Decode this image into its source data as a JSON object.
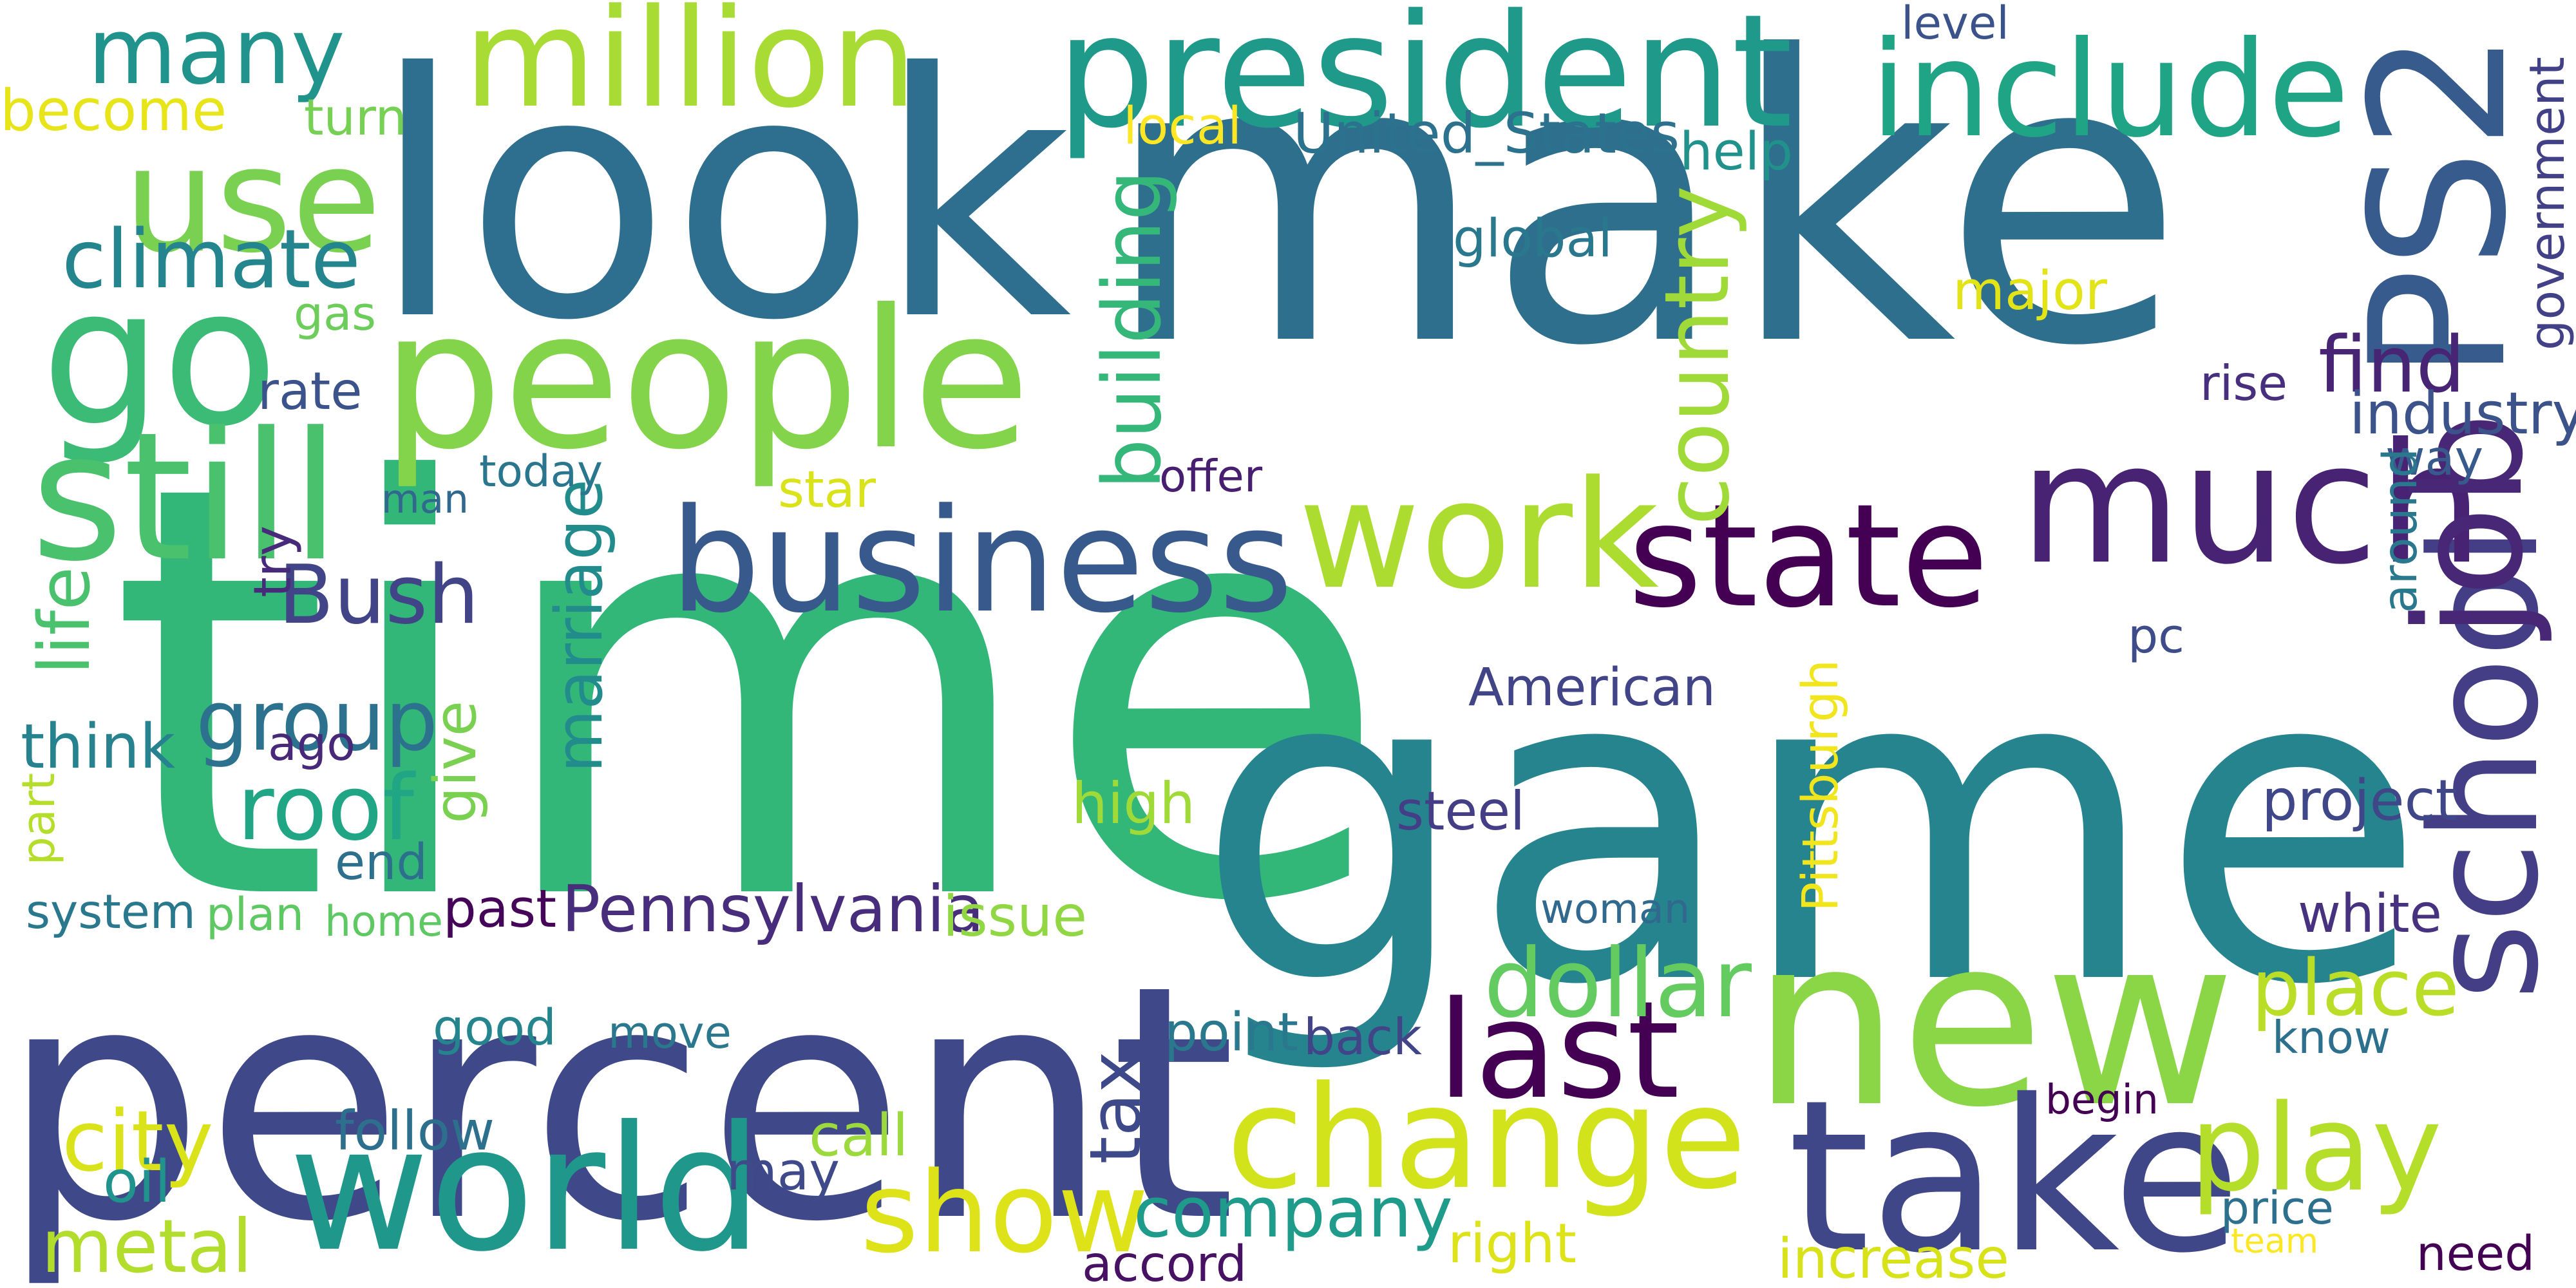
{
  "words": [
    {
      "text": "make",
      "color": "#2e6f8e",
      "vertical": false
    },
    {
      "text": "time",
      "color": "#33b779",
      "vertical": false
    },
    {
      "text": "game",
      "color": "#25848e",
      "vertical": false
    },
    {
      "text": "percent",
      "color": "#3f4889",
      "vertical": false
    },
    {
      "text": "new",
      "color": "#8ad646",
      "vertical": false
    },
    {
      "text": "look",
      "color": "#2e6e8e",
      "vertical": false
    },
    {
      "text": "people",
      "color": "#84d44b",
      "vertical": false
    },
    {
      "text": "take",
      "color": "#404788",
      "vertical": false
    },
    {
      "text": "change",
      "color": "#d2e21b",
      "vertical": false
    },
    {
      "text": "business",
      "color": "#38598c",
      "vertical": false
    },
    {
      "text": "go",
      "color": "#3bbb75",
      "vertical": false
    },
    {
      "text": "president",
      "color": "#1f998a",
      "vertical": false
    },
    {
      "text": "world",
      "color": "#1f988b",
      "vertical": false
    },
    {
      "text": "school",
      "color": "#433e85",
      "vertical": true
    },
    {
      "text": "much",
      "color": "#482374",
      "vertical": false
    },
    {
      "text": "work",
      "color": "#addc30",
      "vertical": false
    },
    {
      "text": "state",
      "color": "#440154",
      "vertical": false
    },
    {
      "text": "include",
      "color": "#20a486",
      "vertical": false
    },
    {
      "text": "use",
      "color": "#7ad151",
      "vertical": false
    },
    {
      "text": "million",
      "color": "#a8db34",
      "vertical": false
    },
    {
      "text": "PS2",
      "color": "#375b8d",
      "vertical": true
    },
    {
      "text": "still",
      "color": "#4ac16d",
      "vertical": false
    },
    {
      "text": "many",
      "color": "#20938c",
      "vertical": false
    },
    {
      "text": "show",
      "color": "#dde318",
      "vertical": false
    },
    {
      "text": "play",
      "color": "#b5de2b",
      "vertical": false
    },
    {
      "text": "last",
      "color": "#440154",
      "vertical": false
    },
    {
      "text": "job",
      "color": "#482777",
      "vertical": true
    },
    {
      "text": "company",
      "color": "#1e9b8a",
      "vertical": false
    },
    {
      "text": "country",
      "color": "#a0da39",
      "vertical": true
    },
    {
      "text": "dollar",
      "color": "#63cb5f",
      "vertical": false
    },
    {
      "text": "Bush",
      "color": "#414487",
      "vertical": false
    },
    {
      "text": "marriage",
      "color": "#228c8d",
      "vertical": true
    },
    {
      "text": "building",
      "color": "#35b779",
      "vertical": true
    },
    {
      "text": "find",
      "color": "#482475",
      "vertical": false
    },
    {
      "text": "place",
      "color": "#bade28",
      "vertical": false
    },
    {
      "text": "group",
      "color": "#2c728e",
      "vertical": false
    },
    {
      "text": "roof",
      "color": "#21a685",
      "vertical": false
    },
    {
      "text": "climate",
      "color": "#25858e",
      "vertical": false
    },
    {
      "text": "metal",
      "color": "#b2dd2d",
      "vertical": false
    },
    {
      "text": "city",
      "color": "#dae319",
      "vertical": false
    },
    {
      "text": "Pennsylvania",
      "color": "#472d7b",
      "vertical": false
    },
    {
      "text": "way",
      "color": "#38598c",
      "vertical": false
    },
    {
      "text": "become",
      "color": "#e7e419",
      "vertical": false
    },
    {
      "text": "may",
      "color": "#3e4a89",
      "vertical": false
    },
    {
      "text": "tax",
      "color": "#3e4989",
      "vertical": true
    },
    {
      "text": "American",
      "color": "#414487",
      "vertical": false
    },
    {
      "text": "life",
      "color": "#4ac16d",
      "vertical": true
    },
    {
      "text": "part",
      "color": "#b5de2b",
      "vertical": true
    },
    {
      "text": "industry",
      "color": "#3b528b",
      "vertical": false
    },
    {
      "text": "government",
      "color": "#424086",
      "vertical": true
    },
    {
      "text": "United_States",
      "color": "#2c728e",
      "vertical": false
    },
    {
      "text": "system",
      "color": "#2a788e",
      "vertical": false
    },
    {
      "text": "home",
      "color": "#5ec962",
      "vertical": false
    },
    {
      "text": "issue",
      "color": "#90d743",
      "vertical": false
    },
    {
      "text": "think",
      "color": "#26828e",
      "vertical": false
    },
    {
      "text": "project",
      "color": "#3f4788",
      "vertical": false
    },
    {
      "text": "Pittsburgh",
      "color": "#f1e51d",
      "vertical": true
    },
    {
      "text": "high",
      "color": "#a0da39",
      "vertical": false
    },
    {
      "text": "help",
      "color": "#21918c",
      "vertical": false
    },
    {
      "text": "global",
      "color": "#2a788e",
      "vertical": false
    },
    {
      "text": "today",
      "color": "#2a768e",
      "vertical": false
    },
    {
      "text": "offer",
      "color": "#481f70",
      "vertical": false
    },
    {
      "text": "level",
      "color": "#3b528b",
      "vertical": false
    },
    {
      "text": "local",
      "color": "#fde725",
      "vertical": false
    },
    {
      "text": "turn",
      "color": "#75d054",
      "vertical": false
    },
    {
      "text": "gas",
      "color": "#6ccd5a",
      "vertical": false
    },
    {
      "text": "rate",
      "color": "#3b528b",
      "vertical": false
    },
    {
      "text": "man",
      "color": "#31688e",
      "vertical": false
    },
    {
      "text": "star",
      "color": "#dae319",
      "vertical": false
    },
    {
      "text": "try",
      "color": "#472a7a",
      "vertical": true
    },
    {
      "text": "ago",
      "color": "#482878",
      "vertical": false
    },
    {
      "text": "give",
      "color": "#7ad151",
      "vertical": true
    },
    {
      "text": "end",
      "color": "#2d708e",
      "vertical": false
    },
    {
      "text": "plan",
      "color": "#5ec962",
      "vertical": false
    },
    {
      "text": "past",
      "color": "#450559",
      "vertical": false
    },
    {
      "text": "good",
      "color": "#25858e",
      "vertical": false
    },
    {
      "text": "move",
      "color": "#2a778e",
      "vertical": false
    },
    {
      "text": "point",
      "color": "#2a788e",
      "vertical": false
    },
    {
      "text": "back",
      "color": "#414487",
      "vertical": false
    },
    {
      "text": "steel",
      "color": "#433e85",
      "vertical": false
    },
    {
      "text": "woman",
      "color": "#31688e",
      "vertical": false
    },
    {
      "text": "pc",
      "color": "#3e4c8a",
      "vertical": false
    },
    {
      "text": "white",
      "color": "#46327e",
      "vertical": false
    },
    {
      "text": "know",
      "color": "#2d708e",
      "vertical": false
    },
    {
      "text": "rise",
      "color": "#472f7d",
      "vertical": false
    },
    {
      "text": "around",
      "color": "#2a788e",
      "vertical": true
    },
    {
      "text": "major",
      "color": "#e2e418",
      "vertical": false
    },
    {
      "text": "follow",
      "color": "#2d708e",
      "vertical": false
    },
    {
      "text": "oil",
      "color": "#20938c",
      "vertical": false
    },
    {
      "text": "call",
      "color": "#9bd93c",
      "vertical": false
    },
    {
      "text": "begin",
      "color": "#440154",
      "vertical": false
    },
    {
      "text": "price",
      "color": "#2d708e",
      "vertical": false
    },
    {
      "text": "team",
      "color": "#fde725",
      "vertical": false
    },
    {
      "text": "right",
      "color": "#dde318",
      "vertical": false
    },
    {
      "text": "accord",
      "color": "#471164",
      "vertical": false
    },
    {
      "text": "increase",
      "color": "#d8e219",
      "vertical": false
    },
    {
      "text": "need",
      "color": "#440154",
      "vertical": false
    }
  ]
}
